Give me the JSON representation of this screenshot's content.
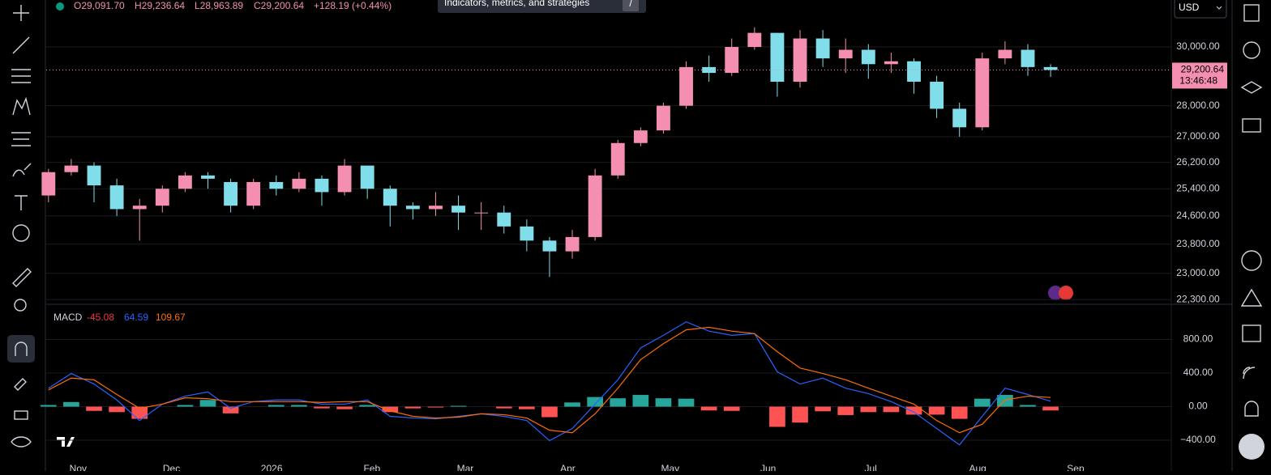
{
  "header": {
    "open": "O29,091.70",
    "high": "H29,236.64",
    "low": "L28,963.89",
    "close": "C29,200.64",
    "change": "+128.19 (+0.44%)"
  },
  "tooltip": {
    "text": "Indicators, metrics, and strategies",
    "key": "/"
  },
  "currency": "USD",
  "price_label": {
    "price": "29,200.64",
    "countdown": "13:46:48"
  },
  "macd_legend": {
    "label": "MACD",
    "values": [
      "-45.08",
      "64.59",
      "109.67"
    ],
    "colors": [
      "#f23645",
      "#2962ff",
      "#ff6d00"
    ]
  },
  "chart_data": [
    {
      "type": "candlestick",
      "log_scale": true,
      "up_color": "#f48fb1",
      "down_color": "#80deea",
      "open": [
        25200,
        25900,
        26100,
        25500,
        24800,
        24900,
        25400,
        25800,
        25600,
        24900,
        25600,
        25400,
        25700,
        25300,
        26100,
        25400,
        24900,
        24800,
        24900,
        24700,
        24700,
        24300,
        23900,
        23600,
        24000,
        25800,
        26800,
        27200,
        28000,
        29300,
        29100,
        30000,
        30500,
        28800,
        30300,
        29600,
        29900,
        29400,
        29500,
        28800,
        27900,
        27300,
        29600,
        29900,
        29300
      ],
      "high": [
        26000,
        26300,
        26200,
        25700,
        25100,
        25500,
        25900,
        25900,
        25700,
        25700,
        25800,
        25900,
        25800,
        26300,
        26100,
        25500,
        25000,
        25300,
        25200,
        25000,
        24900,
        24500,
        24000,
        24200,
        26000,
        26900,
        27300,
        28100,
        29500,
        29700,
        30300,
        30700,
        30500,
        30600,
        30600,
        30300,
        30100,
        29800,
        29600,
        29000,
        28100,
        29800,
        30200,
        30100,
        29400
      ],
      "low": [
        25000,
        25800,
        25000,
        24600,
        23900,
        24700,
        25300,
        25400,
        24700,
        24800,
        25200,
        25300,
        24900,
        25200,
        25100,
        24300,
        24500,
        24600,
        24200,
        24200,
        24100,
        23600,
        22900,
        23400,
        23900,
        25700,
        26700,
        27100,
        27900,
        28800,
        29000,
        29900,
        28300,
        28600,
        29300,
        29100,
        28900,
        29100,
        28400,
        27600,
        27000,
        27200,
        29400,
        29000,
        28963.89
      ],
      "close": [
        25900,
        26100,
        25500,
        24800,
        24900,
        25400,
        25800,
        25700,
        24900,
        25600,
        25400,
        25700,
        25300,
        26100,
        25400,
        24900,
        24800,
        24900,
        24700,
        24700,
        24300,
        23900,
        23600,
        24000,
        25800,
        26800,
        27200,
        28000,
        29300,
        29100,
        30000,
        30500,
        28800,
        30300,
        29600,
        29900,
        29400,
        29500,
        28800,
        27900,
        27300,
        29600,
        29900,
        29300,
        29200.64
      ],
      "xlim": [
        -0.1,
        49.3
      ],
      "xticks": [
        {
          "value": 1.3,
          "label": "Nov"
        },
        {
          "value": 5.4,
          "label": "Dec"
        },
        {
          "value": 9.8,
          "label": "2026"
        },
        {
          "value": 14.2,
          "label": "Feb"
        },
        {
          "value": 18.3,
          "label": "Mar"
        },
        {
          "value": 22.8,
          "label": "Apr"
        },
        {
          "value": 27.3,
          "label": "May"
        },
        {
          "value": 31.6,
          "label": "Jun"
        },
        {
          "value": 36.1,
          "label": "Jul"
        },
        {
          "value": 40.8,
          "label": "Aug"
        },
        {
          "value": 45.1,
          "label": "Sep"
        }
      ],
      "ylim": [
        22200,
        31700
      ],
      "yticks": [
        {
          "value": 30000,
          "label": "30,000.00"
        },
        {
          "value": 28000,
          "label": "28,000.00"
        },
        {
          "value": 27000,
          "label": "27,000.00"
        },
        {
          "value": 26200,
          "label": "26,200.00"
        },
        {
          "value": 25400,
          "label": "25,400.00"
        },
        {
          "value": 24600,
          "label": "24,600.00"
        },
        {
          "value": 23800,
          "label": "23,800.00"
        },
        {
          "value": 23000,
          "label": "23,000.00"
        },
        {
          "value": 22300,
          "label": "22,300.00"
        }
      ]
    },
    {
      "type": "macd",
      "histogram": {
        "positive_color": "#26a69a",
        "negative_color": "#ff5252",
        "values": [
          20,
          55,
          -50,
          -65,
          -145,
          0,
          20,
          80,
          -80,
          0,
          20,
          20,
          -20,
          -30,
          20,
          -65,
          -20,
          -10,
          10,
          0,
          -20,
          -30,
          -125,
          50,
          115,
          100,
          140,
          100,
          95,
          -45,
          -50,
          0,
          -240,
          -190,
          -55,
          -100,
          -65,
          -65,
          -95,
          -95,
          -145,
          95,
          140,
          20,
          -45.08
        ]
      },
      "series": [
        {
          "color": "#2962ff",
          "values": [
            220,
            395,
            270,
            80,
            -165,
            30,
            125,
            175,
            -20,
            60,
            80,
            80,
            30,
            30,
            80,
            -115,
            -135,
            -145,
            -115,
            -85,
            -115,
            -165,
            -405,
            -260,
            30,
            320,
            700,
            850,
            1010,
            900,
            850,
            870,
            415,
            270,
            340,
            220,
            155,
            60,
            -65,
            -260,
            -455,
            -115,
            220,
            145,
            64.59
          ]
        },
        {
          "color": "#ff6d00",
          "values": [
            200,
            340,
            320,
            145,
            -20,
            30,
            105,
            95,
            60,
            60,
            60,
            60,
            50,
            60,
            60,
            -50,
            -115,
            -135,
            -125,
            -85,
            -95,
            -135,
            -280,
            -310,
            -85,
            220,
            560,
            750,
            915,
            945,
            900,
            870,
            655,
            460,
            395,
            320,
            220,
            125,
            30,
            -165,
            -310,
            -210,
            80,
            125,
            109.67
          ]
        }
      ],
      "ylim": [
        -650,
        1210
      ],
      "yticks": [
        {
          "value": 800,
          "label": "800.00"
        },
        {
          "value": 400,
          "label": "400.00"
        },
        {
          "value": 0,
          "label": "0.00"
        },
        {
          "value": -400,
          "label": "−400.00"
        }
      ]
    }
  ]
}
